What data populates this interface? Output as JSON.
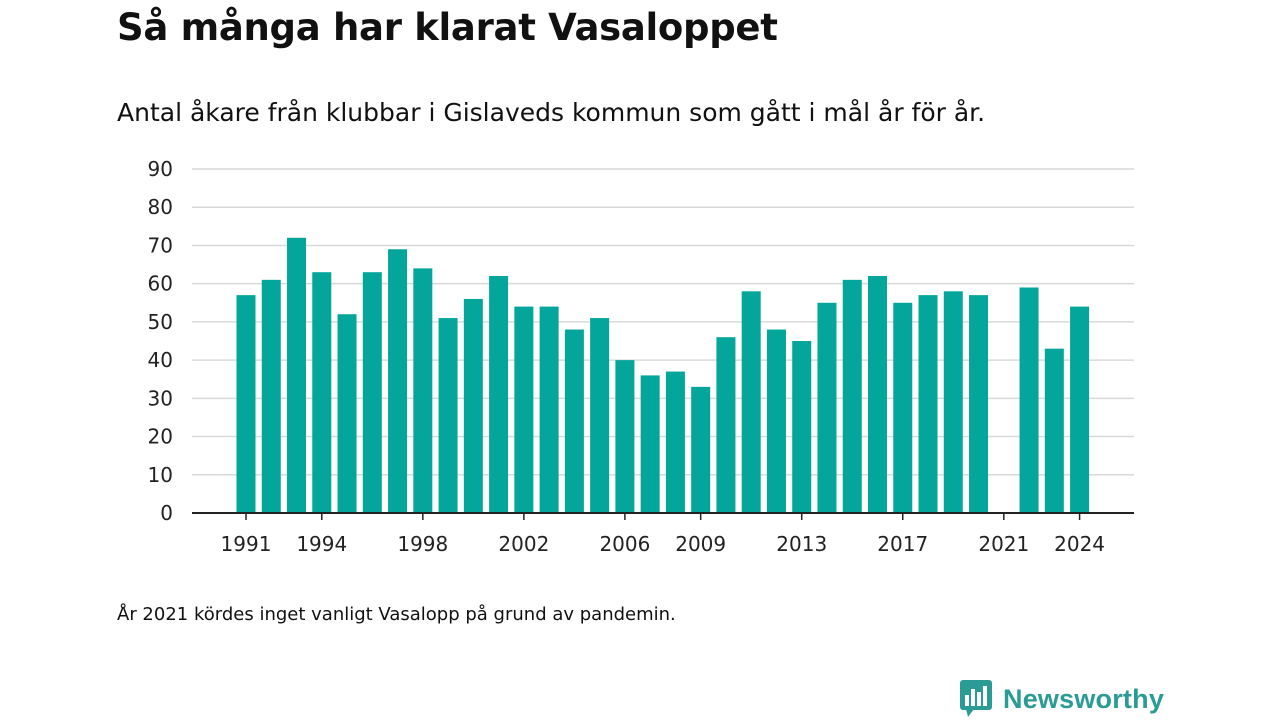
{
  "header": {
    "title": "Så många har klarat Vasaloppet",
    "subtitle": "Antal åkare från klubbar i Gislaveds kommun som gått i mål år för år."
  },
  "footnote": "År 2021 kördes inget vanligt Vasalopp på grund av pandemin.",
  "brand": {
    "name": "Newsworthy",
    "icon": "newsworthy-logo-icon"
  },
  "colors": {
    "bar": "#04a59a",
    "grid": "#d9d9d9",
    "axis": "#222222",
    "brand": "#2a9c95"
  },
  "chart_data": {
    "type": "bar",
    "title": "Så många har klarat Vasaloppet",
    "subtitle": "Antal åkare från klubbar i Gislaveds kommun som gått i mål år för år.",
    "xlabel": "",
    "ylabel": "",
    "ylim": [
      0,
      90
    ],
    "yticks": [
      0,
      10,
      20,
      30,
      40,
      50,
      60,
      70,
      80,
      90
    ],
    "xticks": [
      "1991",
      "1994",
      "1998",
      "2002",
      "2006",
      "2009",
      "2013",
      "2017",
      "2021",
      "2024"
    ],
    "grid": true,
    "legend": "none",
    "categories": [
      "1991",
      "1992",
      "1993",
      "1994",
      "1995",
      "1996",
      "1997",
      "1998",
      "1999",
      "2000",
      "2001",
      "2002",
      "2003",
      "2004",
      "2005",
      "2006",
      "2007",
      "2008",
      "2009",
      "2010",
      "2011",
      "2012",
      "2013",
      "2014",
      "2015",
      "2016",
      "2017",
      "2018",
      "2019",
      "2020",
      "2021",
      "2022",
      "2023",
      "2024"
    ],
    "values": [
      57,
      61,
      72,
      63,
      52,
      63,
      69,
      64,
      51,
      56,
      62,
      54,
      54,
      48,
      51,
      40,
      36,
      37,
      33,
      46,
      58,
      48,
      45,
      55,
      61,
      62,
      55,
      57,
      58,
      57,
      null,
      59,
      43,
      54
    ]
  }
}
